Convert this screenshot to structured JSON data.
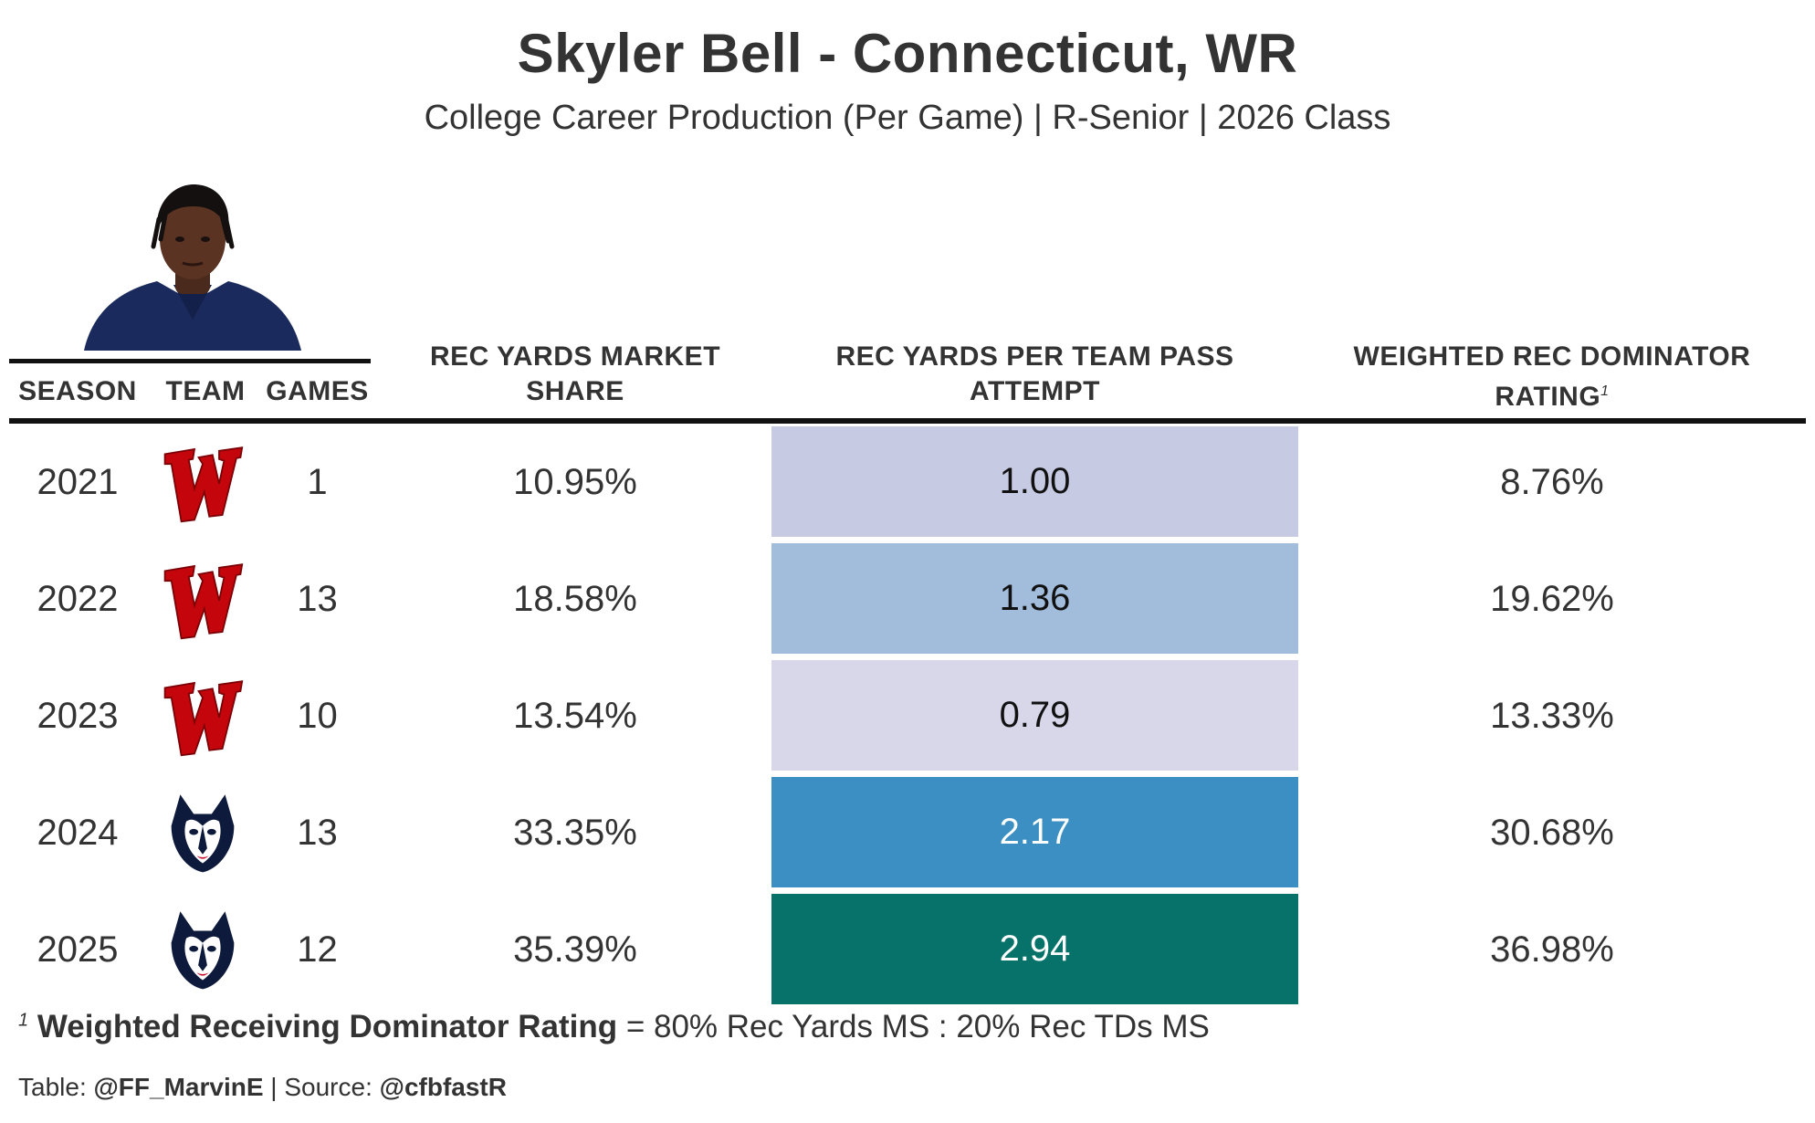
{
  "header": {
    "title": "Skyler Bell - Connecticut, WR",
    "subtitle": "College Career Production (Per Game) | R-Senior | 2026 Class"
  },
  "columns": {
    "season": "SEASON",
    "team": "TEAM",
    "games": "GAMES",
    "market_share_l1": "REC YARDS MARKET",
    "market_share_l2": "SHARE",
    "per_attempt_l1": "REC YARDS PER TEAM PASS",
    "per_attempt_l2": "ATTEMPT",
    "dominator_l1": "WEIGHTED REC DOMINATOR",
    "dominator_l2": "RATING",
    "dominator_marker": "1"
  },
  "rows": [
    {
      "season": "2021",
      "team_logo": "wisconsin-logo",
      "games": "1",
      "market_share": "10.95%",
      "per_attempt": "1.00",
      "dominator": "8.76%"
    },
    {
      "season": "2022",
      "team_logo": "wisconsin-logo",
      "games": "13",
      "market_share": "18.58%",
      "per_attempt": "1.36",
      "dominator": "19.62%"
    },
    {
      "season": "2023",
      "team_logo": "wisconsin-logo",
      "games": "10",
      "market_share": "13.54%",
      "per_attempt": "0.79",
      "dominator": "13.33%"
    },
    {
      "season": "2024",
      "team_logo": "uconn-husky-logo",
      "games": "13",
      "market_share": "33.35%",
      "per_attempt": "2.17",
      "dominator": "30.68%"
    },
    {
      "season": "2025",
      "team_logo": "uconn-husky-logo",
      "games": "12",
      "market_share": "35.39%",
      "per_attempt": "2.94",
      "dominator": "36.98%"
    }
  ],
  "heat_colors": [
    "#c7cae3",
    "#a2bcdb",
    "#d8d6e9",
    "#3b8fc2",
    "#06726a"
  ],
  "heat_text_colors": [
    "#111111",
    "#111111",
    "#111111",
    "#ffffff",
    "#ffffff"
  ],
  "footnote": {
    "marker": "1",
    "bold": "Weighted Receiving Dominator Rating",
    "rest": " = 80% Rec Yards MS : 20% Rec TDs MS"
  },
  "credits": {
    "table_label": "Table: ",
    "table_handle": "@FF_MarvinE",
    "separator": " | ",
    "source_label": "Source: ",
    "source_handle": "@cfbfastR"
  },
  "colors": {
    "wisconsin_red": "#c5050c",
    "uconn_navy": "#0e1a3c"
  },
  "chart_data": {
    "type": "table",
    "title": "Skyler Bell - Connecticut, WR",
    "subtitle": "College Career Production (Per Game) | R-Senior | 2026 Class",
    "columns": [
      "SEASON",
      "TEAM",
      "GAMES",
      "REC YARDS MARKET SHARE",
      "REC YARDS PER TEAM PASS ATTEMPT",
      "WEIGHTED REC DOMINATOR RATING"
    ],
    "x": [
      "2021",
      "2022",
      "2023",
      "2024",
      "2025"
    ],
    "series": [
      {
        "name": "GAMES",
        "values": [
          1,
          13,
          10,
          13,
          12
        ]
      },
      {
        "name": "REC YARDS MARKET SHARE",
        "values": [
          10.95,
          18.58,
          13.54,
          33.35,
          35.39
        ]
      },
      {
        "name": "REC YARDS PER TEAM PASS ATTEMPT",
        "values": [
          1.0,
          1.36,
          0.79,
          2.17,
          2.94
        ]
      },
      {
        "name": "WEIGHTED REC DOMINATOR RATING",
        "values": [
          8.76,
          19.62,
          13.33,
          30.68,
          36.98
        ]
      }
    ]
  }
}
